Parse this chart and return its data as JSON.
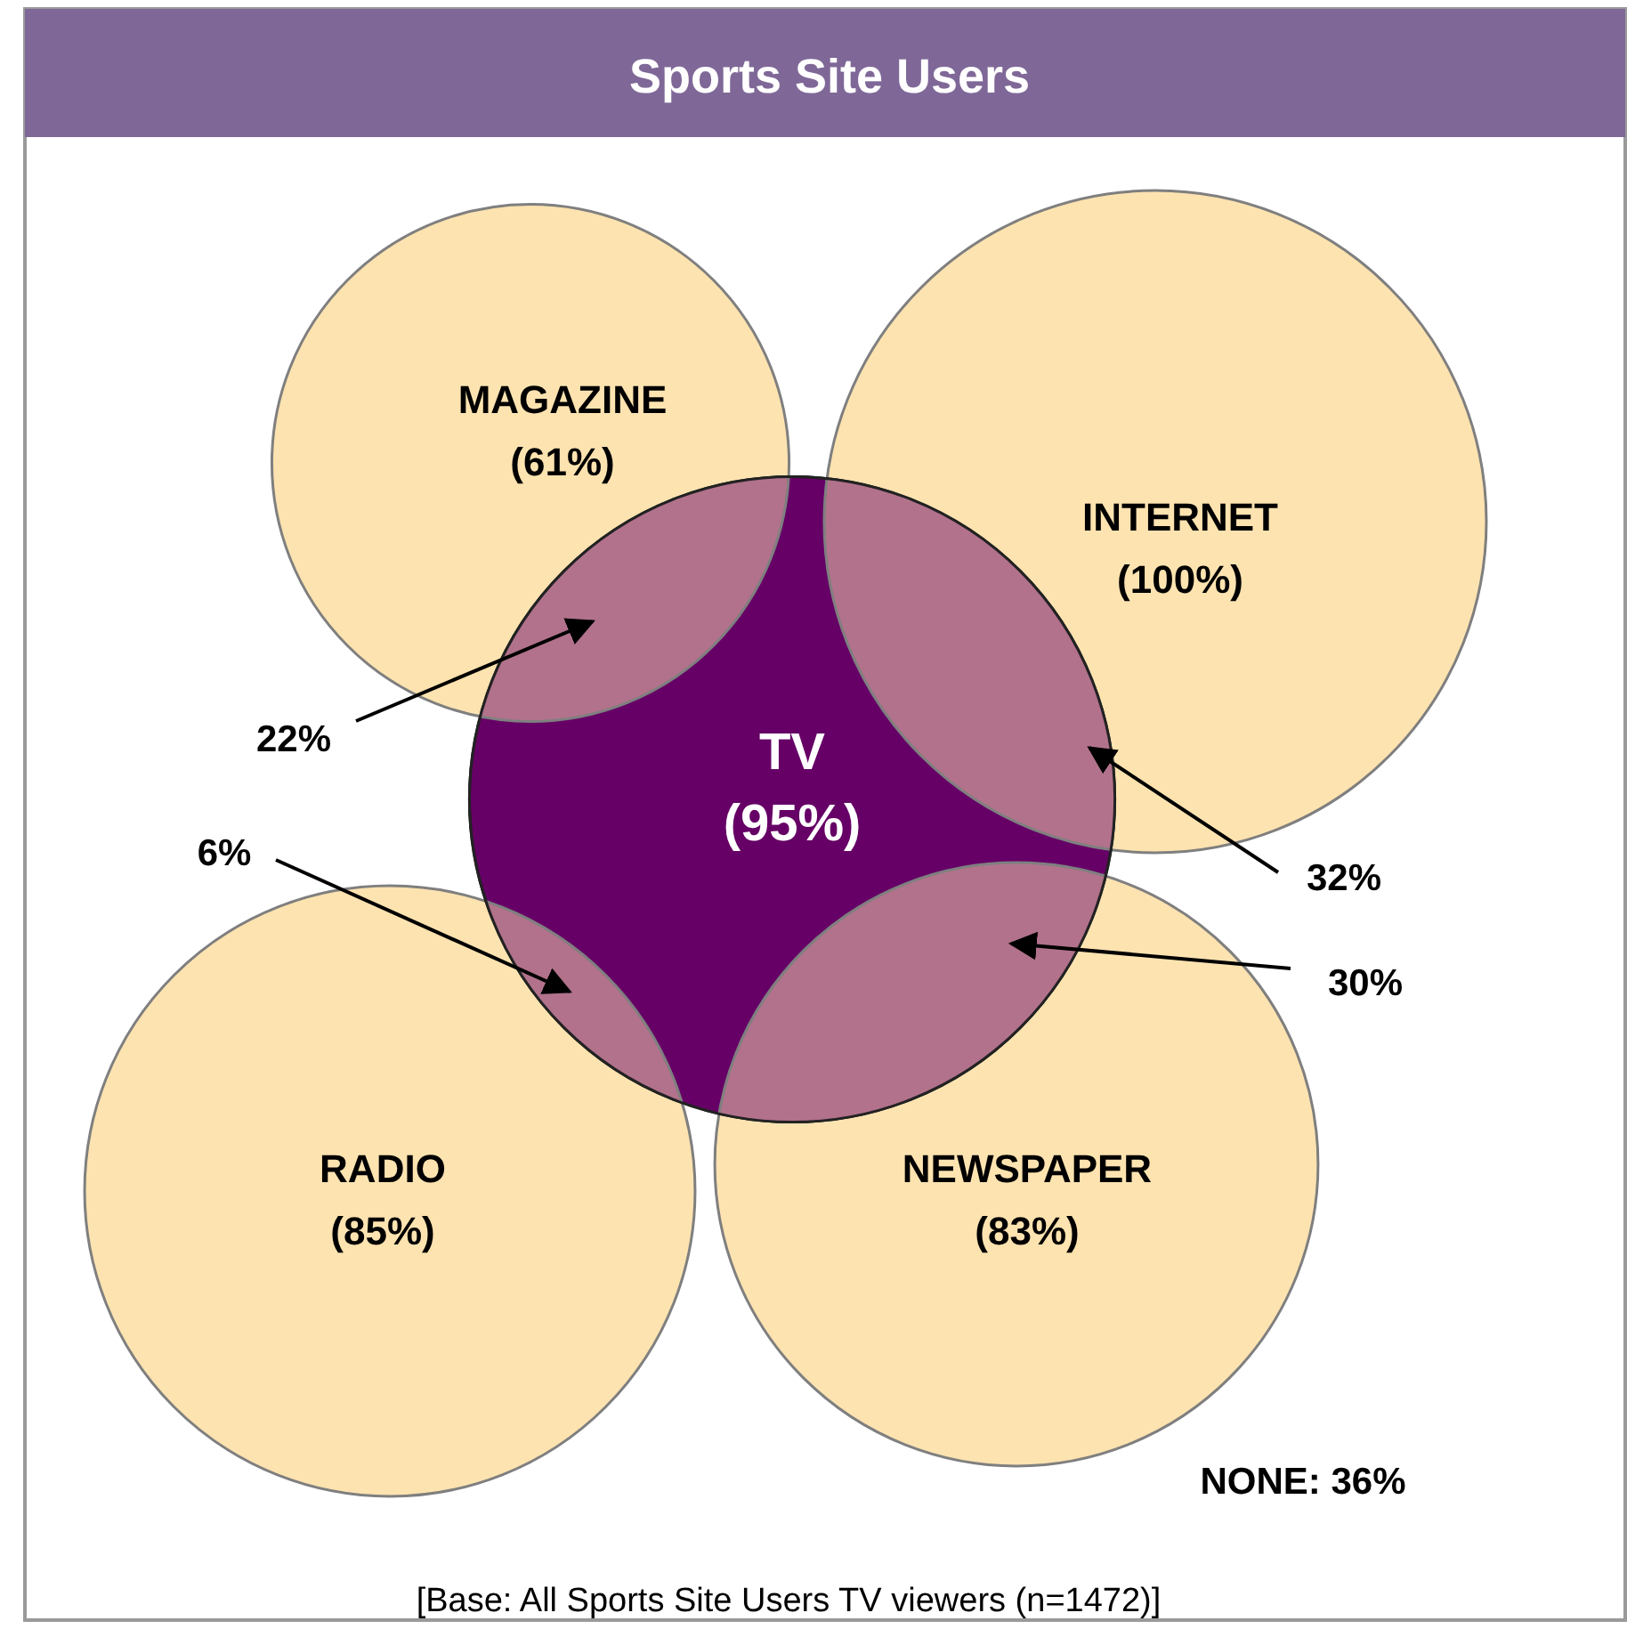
{
  "chart_data": {
    "type": "other",
    "title": "Sports Site Users",
    "categories": [
      "MAGAZINE",
      "INTERNET",
      "TV",
      "RADIO",
      "NEWSPAPER"
    ],
    "values": [
      61,
      100,
      95,
      85,
      83
    ],
    "value_labels": [
      "(61%)",
      "(100%)",
      "(95%)",
      "(85%)",
      "(83%)"
    ],
    "colors": [
      "#fde3b0",
      "#fde3b0",
      "#660066",
      "#fde3b0",
      "#fde3b0"
    ],
    "annotations": [
      "22%",
      "32%",
      "30%",
      "6%",
      "NONE: 36%",
      "[Base: All Sports Site Users TV viewers (n=1472)]"
    ]
  }
}
